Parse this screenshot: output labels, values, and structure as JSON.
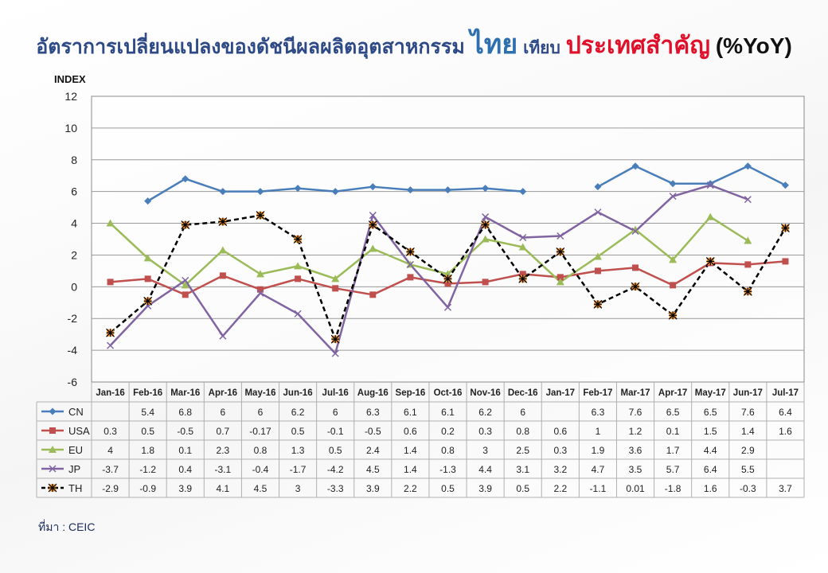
{
  "title": {
    "part1": "อัตราการเปลี่ยนแปลงของดัชนีผลผลิตอุตสาหกรรม",
    "part2": "ไทย",
    "part3": "เทียบ",
    "part4": "ประเทศสำคัญ",
    "part5": "(%YoY)"
  },
  "source": "ที่มา : CEIC",
  "colors": {
    "title_dark": "#2e4a86",
    "title_blue": "#2e6fb0",
    "title_red": "#e0102a"
  },
  "chart_data": {
    "type": "line",
    "ylabel": "INDEX",
    "ylim": [
      -6,
      12
    ],
    "yticks": [
      -6,
      -4,
      -2,
      0,
      2,
      4,
      6,
      8,
      10,
      12
    ],
    "grid": true,
    "categories": [
      "Jan-16",
      "Feb-16",
      "Mar-16",
      "Apr-16",
      "May-16",
      "Jun-16",
      "Jul-16",
      "Aug-16",
      "Sep-16",
      "Oct-16",
      "Nov-16",
      "Dec-16",
      "Jan-17",
      "Feb-17",
      "Mar-17",
      "Apr-17",
      "May-17",
      "Jun-17",
      "Jul-17"
    ],
    "series": [
      {
        "name": "CN",
        "color": "#4a7ebb",
        "marker": "diamond",
        "dash": false,
        "values": [
          null,
          5.4,
          6.8,
          6,
          6,
          6.2,
          6,
          6.3,
          6.1,
          6.1,
          6.2,
          6,
          null,
          6.3,
          7.6,
          6.5,
          6.5,
          7.6,
          6.4
        ],
        "labels": [
          "",
          "5.4",
          "6.8",
          "6",
          "6",
          "6.2",
          "6",
          "6.3",
          "6.1",
          "6.1",
          "6.2",
          "6",
          "",
          "6.3",
          "7.6",
          "6.5",
          "6.5",
          "7.6",
          "6.4"
        ]
      },
      {
        "name": "USA",
        "color": "#c0504d",
        "marker": "square",
        "dash": false,
        "values": [
          0.3,
          0.5,
          -0.5,
          0.7,
          -0.17,
          0.5,
          -0.1,
          -0.5,
          0.6,
          0.2,
          0.3,
          0.8,
          0.6,
          1,
          1.2,
          0.1,
          1.5,
          1.4,
          1.6
        ],
        "labels": [
          "0.3",
          "0.5",
          "-0.5",
          "0.7",
          "-0.17",
          "0.5",
          "-0.1",
          "-0.5",
          "0.6",
          "0.2",
          "0.3",
          "0.8",
          "0.6",
          "1",
          "1.2",
          "0.1",
          "1.5",
          "1.4",
          "1.6"
        ]
      },
      {
        "name": "EU",
        "color": "#9bbb59",
        "marker": "triangle",
        "dash": false,
        "values": [
          4,
          1.8,
          0.1,
          2.3,
          0.8,
          1.3,
          0.5,
          2.4,
          1.4,
          0.8,
          3,
          2.5,
          0.3,
          1.9,
          3.6,
          1.7,
          4.4,
          2.9,
          null
        ],
        "labels": [
          "4",
          "1.8",
          "0.1",
          "2.3",
          "0.8",
          "1.3",
          "0.5",
          "2.4",
          "1.4",
          "0.8",
          "3",
          "2.5",
          "0.3",
          "1.9",
          "3.6",
          "1.7",
          "4.4",
          "2.9",
          ""
        ]
      },
      {
        "name": "JP",
        "color": "#8064a2",
        "marker": "x",
        "dash": false,
        "values": [
          -3.7,
          -1.2,
          0.4,
          -3.1,
          -0.4,
          -1.7,
          -4.2,
          4.5,
          1.4,
          -1.3,
          4.4,
          3.1,
          3.2,
          4.7,
          3.5,
          5.7,
          6.4,
          5.5,
          null
        ],
        "labels": [
          "-3.7",
          "-1.2",
          "0.4",
          "-3.1",
          "-0.4",
          "-1.7",
          "-4.2",
          "4.5",
          "1.4",
          "-1.3",
          "4.4",
          "3.1",
          "3.2",
          "4.7",
          "3.5",
          "5.7",
          "6.4",
          "5.5",
          ""
        ]
      },
      {
        "name": "TH",
        "color": "#000000",
        "marker": "star",
        "dash": true,
        "values": [
          -2.9,
          -0.9,
          3.9,
          4.1,
          4.5,
          3,
          -3.3,
          3.9,
          2.2,
          0.5,
          3.9,
          0.5,
          2.2,
          -1.1,
          0.01,
          -1.8,
          1.6,
          -0.3,
          3.7
        ],
        "labels": [
          "-2.9",
          "-0.9",
          "3.9",
          "4.1",
          "4.5",
          "3",
          "-3.3",
          "3.9",
          "2.2",
          "0.5",
          "3.9",
          "0.5",
          "2.2",
          "-1.1",
          "0.01",
          "-1.8",
          "1.6",
          "-0.3",
          "3.7"
        ]
      }
    ]
  }
}
